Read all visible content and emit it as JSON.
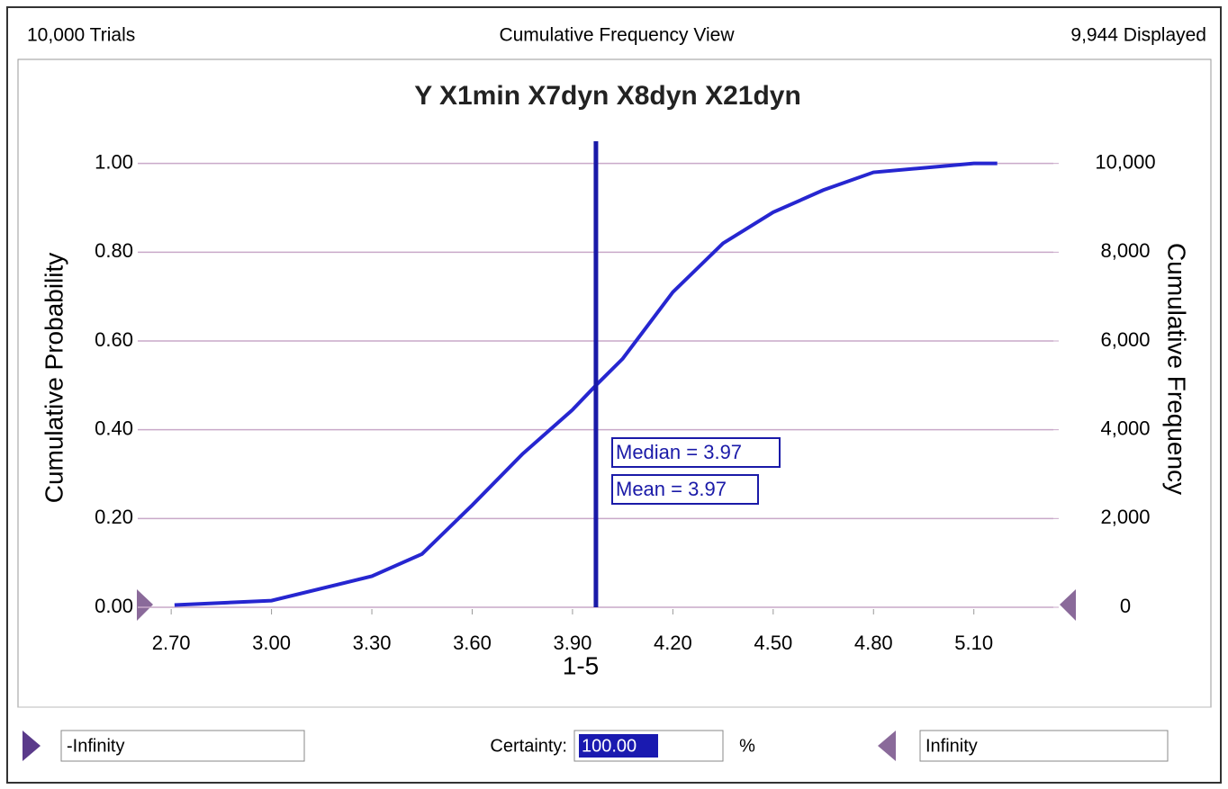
{
  "header": {
    "trials": "10,000 Trials",
    "view": "Cumulative Frequency View",
    "displayed": "9,944 Displayed"
  },
  "chart_data": {
    "type": "line",
    "title": "Y X1min X7dyn X8dyn X21dyn",
    "x_label": "1-5",
    "y_label": "Cumulative Probability",
    "y2_label": "Cumulative Frequency",
    "xlim": [
      2.6,
      5.3
    ],
    "xticks": [
      {
        "value": 2.7,
        "label": "2.70"
      },
      {
        "value": 3.0,
        "label": "3.00"
      },
      {
        "value": 3.3,
        "label": "3.30"
      },
      {
        "value": 3.6,
        "label": "3.60"
      },
      {
        "value": 3.9,
        "label": "3.90"
      },
      {
        "value": 4.2,
        "label": "4.20"
      },
      {
        "value": 4.5,
        "label": "4.50"
      },
      {
        "value": 4.8,
        "label": "4.80"
      },
      {
        "value": 5.1,
        "label": "5.10"
      }
    ],
    "ylim": [
      0,
      1.05
    ],
    "yticks": [
      {
        "value": 0,
        "label": "0.00"
      },
      {
        "value": 0.2,
        "label": "0.20"
      },
      {
        "value": 0.4,
        "label": "0.40"
      },
      {
        "value": 0.6,
        "label": "0.60"
      },
      {
        "value": 0.8,
        "label": "0.80"
      },
      {
        "value": 1,
        "label": "1.00"
      }
    ],
    "y2lim": [
      0,
      10500
    ],
    "y2ticks": [
      0,
      {
        "value": 2000,
        "label": "2,000"
      },
      {
        "value": 4000,
        "label": "4,000"
      },
      {
        "value": 6000,
        "label": "6,000"
      },
      {
        "value": 8000,
        "label": "8,000"
      },
      {
        "value": 10000,
        "label": "10,000"
      }
    ],
    "grid": true,
    "marker": 3.97,
    "marker_color": "#1a1aa8",
    "annotations": [
      "Median = 3.97",
      "Mean = 3.97"
    ],
    "series": [
      {
        "color": "#2626d0",
        "x": [
          2.71,
          3.0,
          3.3,
          3.45,
          3.6,
          3.75,
          3.9,
          3.97,
          4.05,
          4.2,
          4.35,
          4.5,
          4.65,
          4.8,
          4.95,
          5.1,
          5.17
        ],
        "values": [
          0.005,
          0.015,
          0.07,
          0.12,
          0.23,
          0.345,
          0.445,
          0.5,
          0.56,
          0.71,
          0.82,
          0.89,
          0.94,
          0.98,
          0.99,
          1.0,
          1.0
        ]
      }
    ]
  },
  "footer": {
    "lower": "-Infinity",
    "certainty_label": "Certainty:",
    "certainty": "100.00",
    "unit": "%",
    "upper": "Infinity"
  }
}
